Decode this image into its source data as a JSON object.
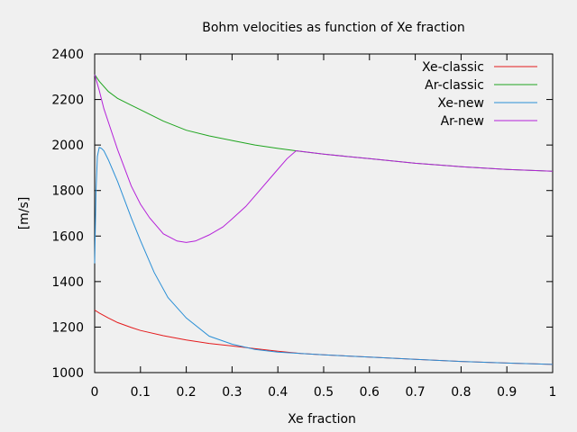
{
  "chart_data": {
    "type": "line",
    "title": "Bohm velocities as function of Xe fraction",
    "xlabel": "Xe fraction",
    "ylabel": "[m/s]",
    "xlim": [
      0,
      1
    ],
    "ylim": [
      1000,
      2400
    ],
    "xticks": [
      0,
      0.1,
      0.2,
      0.3,
      0.4,
      0.5,
      0.6,
      0.7,
      0.8,
      0.9,
      1
    ],
    "xtick_labels": [
      "0",
      "0.1",
      "0.2",
      "0.3",
      "0.4",
      "0.5",
      "0.6",
      "0.7",
      "0.8",
      "0.9",
      "1"
    ],
    "yticks": [
      1000,
      1200,
      1400,
      1600,
      1800,
      2000,
      2200,
      2400
    ],
    "ytick_labels": [
      "1000",
      "1200",
      "1400",
      "1600",
      "1800",
      "2000",
      "2200",
      "2400"
    ],
    "grid": false,
    "legend_position": "top-right",
    "series": [
      {
        "name": "Xe-classic",
        "color": "#e41a1c",
        "x": [
          0,
          0.01,
          0.03,
          0.05,
          0.08,
          0.1,
          0.15,
          0.2,
          0.25,
          0.3,
          0.35,
          0.4,
          0.45,
          0.5,
          0.6,
          0.7,
          0.8,
          0.9,
          1.0
        ],
        "y": [
          1275,
          1262,
          1240,
          1220,
          1198,
          1185,
          1162,
          1143,
          1128,
          1117,
          1105,
          1094,
          1084,
          1078,
          1068,
          1058,
          1049,
          1042,
          1036
        ]
      },
      {
        "name": "Ar-classic",
        "color": "#1fa51f",
        "x": [
          0,
          0.01,
          0.03,
          0.05,
          0.08,
          0.1,
          0.15,
          0.2,
          0.25,
          0.3,
          0.35,
          0.4,
          0.45,
          0.5,
          0.6,
          0.7,
          0.8,
          0.9,
          1.0
        ],
        "y": [
          2310,
          2280,
          2235,
          2205,
          2175,
          2155,
          2105,
          2065,
          2040,
          2020,
          2000,
          1985,
          1972,
          1960,
          1940,
          1920,
          1905,
          1893,
          1885
        ]
      },
      {
        "name": "Xe-new",
        "color": "#2a8fd6",
        "x": [
          0,
          0.003,
          0.006,
          0.01,
          0.015,
          0.02,
          0.03,
          0.05,
          0.08,
          0.1,
          0.13,
          0.16,
          0.2,
          0.25,
          0.3,
          0.35,
          0.4,
          0.45,
          0.5,
          0.6,
          0.7,
          0.8,
          0.9,
          1.0
        ],
        "y": [
          1480,
          1800,
          1950,
          1990,
          1985,
          1975,
          1935,
          1840,
          1680,
          1580,
          1440,
          1330,
          1240,
          1160,
          1125,
          1102,
          1090,
          1084,
          1078,
          1068,
          1058,
          1049,
          1042,
          1036
        ]
      },
      {
        "name": "Ar-new",
        "color": "#b521d9",
        "x": [
          0,
          0.01,
          0.02,
          0.05,
          0.08,
          0.1,
          0.12,
          0.15,
          0.18,
          0.2,
          0.22,
          0.25,
          0.28,
          0.3,
          0.33,
          0.36,
          0.39,
          0.42,
          0.44,
          0.46,
          0.5,
          0.6,
          0.7,
          0.8,
          0.9,
          1.0
        ],
        "y": [
          2310,
          2240,
          2160,
          1980,
          1820,
          1740,
          1680,
          1610,
          1578,
          1572,
          1578,
          1605,
          1640,
          1675,
          1730,
          1800,
          1870,
          1940,
          1975,
          1970,
          1960,
          1940,
          1920,
          1905,
          1893,
          1885
        ]
      }
    ]
  }
}
